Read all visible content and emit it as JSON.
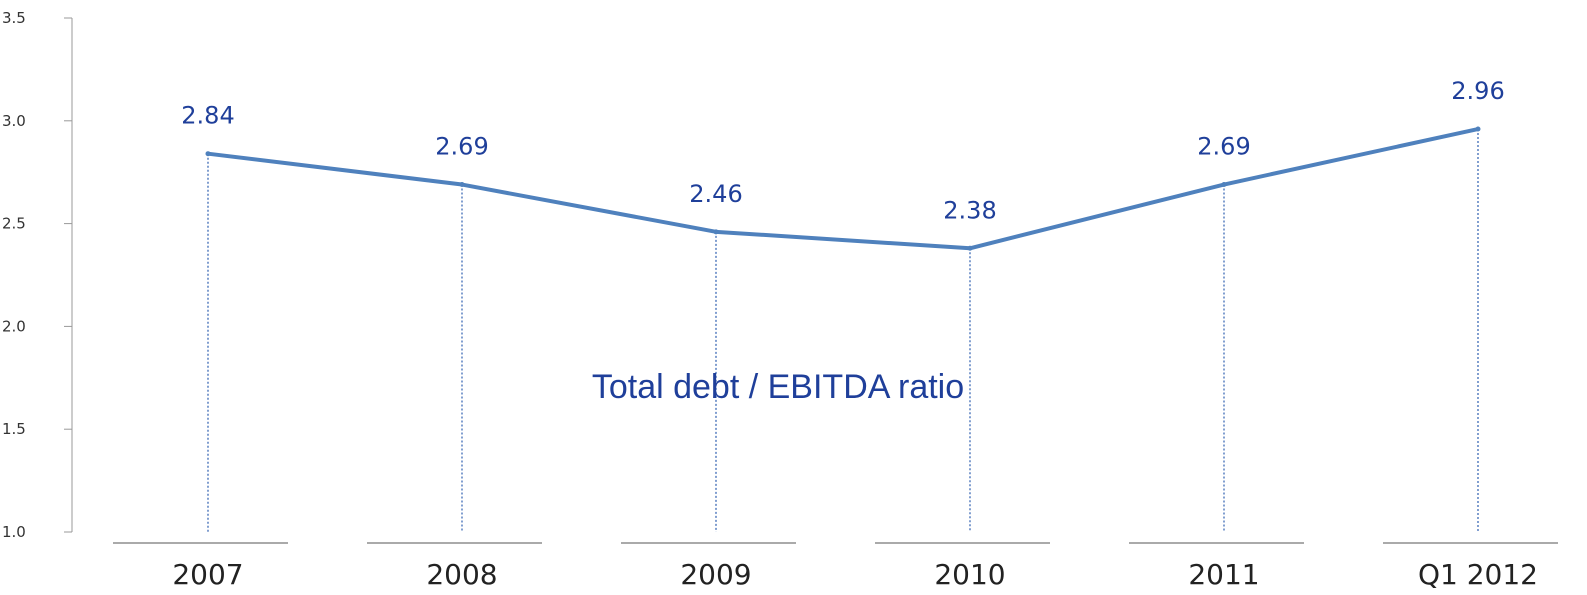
{
  "chart_data": {
    "type": "line",
    "categories": [
      "2007",
      "2008",
      "2009",
      "2010",
      "2011",
      "Q1 2012"
    ],
    "series": [
      {
        "values": [
          2.84,
          2.69,
          2.46,
          2.38,
          2.69,
          2.96
        ]
      }
    ],
    "data_labels": [
      "2.84",
      "2.69",
      "2.46",
      "2.38",
      "2.69",
      "2.96"
    ],
    "title": "Total debt / EBITDA ratio",
    "xlabel": "",
    "ylabel": "",
    "ylim": [
      1.0,
      3.5
    ],
    "yticks": [
      "1.0",
      "1.5",
      "2.0",
      "2.5",
      "3.0",
      "3.5"
    ],
    "grid": false,
    "drop_lines": true,
    "colors": {
      "line": "#4f81bd",
      "labels": "#1f3f9a",
      "drop_lines": "#2e5fb0",
      "axis": "#999999"
    }
  }
}
